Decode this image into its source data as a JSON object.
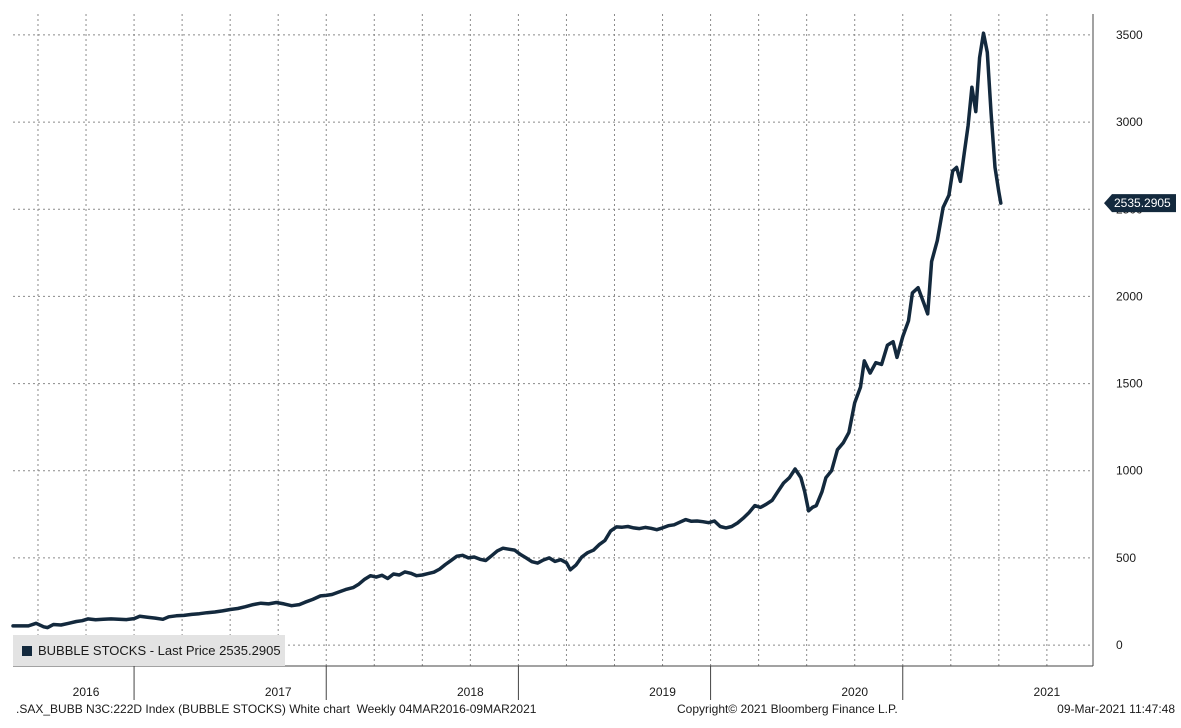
{
  "chart_data": {
    "type": "line",
    "legend": {
      "label": "BUBBLE STOCKS - Last Price 2535.2905",
      "color": "#13293d",
      "placement": "bottom-left"
    },
    "last_price_label": "2535.2905",
    "ylim": [
      -120,
      3620
    ],
    "y_ticks": [
      0,
      500,
      1000,
      1500,
      2000,
      2500,
      3000,
      3500
    ],
    "grid": true,
    "x_ticks": [
      {
        "label": "2016",
        "x": 2016.0
      },
      {
        "label": "2017",
        "x": 2017.0
      },
      {
        "label": "2018",
        "x": 2018.0
      },
      {
        "label": "2019",
        "x": 2019.0
      },
      {
        "label": "2020",
        "x": 2020.0
      },
      {
        "label": "2021",
        "x": 2021.0
      }
    ],
    "xlim": [
      2015.62,
      2021.24
    ],
    "series": [
      {
        "color": "#13293d",
        "points": [
          [
            2015.62,
            110
          ],
          [
            2015.7,
            110
          ],
          [
            2015.74,
            125
          ],
          [
            2015.78,
            105
          ],
          [
            2015.8,
            100
          ],
          [
            2015.83,
            118
          ],
          [
            2015.87,
            115
          ],
          [
            2015.91,
            125
          ],
          [
            2015.95,
            135
          ],
          [
            2015.98,
            140
          ],
          [
            2016.01,
            150
          ],
          [
            2016.05,
            145
          ],
          [
            2016.09,
            148
          ],
          [
            2016.13,
            150
          ],
          [
            2016.17,
            148
          ],
          [
            2016.21,
            146
          ],
          [
            2016.25,
            152
          ],
          [
            2016.28,
            165
          ],
          [
            2016.32,
            160
          ],
          [
            2016.36,
            155
          ],
          [
            2016.4,
            148
          ],
          [
            2016.43,
            162
          ],
          [
            2016.47,
            168
          ],
          [
            2016.51,
            170
          ],
          [
            2016.55,
            176
          ],
          [
            2016.59,
            180
          ],
          [
            2016.63,
            186
          ],
          [
            2016.67,
            190
          ],
          [
            2016.71,
            196
          ],
          [
            2016.75,
            204
          ],
          [
            2016.79,
            210
          ],
          [
            2016.83,
            220
          ],
          [
            2016.87,
            232
          ],
          [
            2016.91,
            240
          ],
          [
            2016.95,
            236
          ],
          [
            2016.99,
            244
          ],
          [
            2017.03,
            236
          ],
          [
            2017.07,
            226
          ],
          [
            2017.11,
            232
          ],
          [
            2017.14,
            246
          ],
          [
            2017.18,
            262
          ],
          [
            2017.22,
            282
          ],
          [
            2017.25,
            285
          ],
          [
            2017.28,
            290
          ],
          [
            2017.31,
            302
          ],
          [
            2017.35,
            318
          ],
          [
            2017.39,
            330
          ],
          [
            2017.42,
            350
          ],
          [
            2017.45,
            378
          ],
          [
            2017.48,
            398
          ],
          [
            2017.51,
            390
          ],
          [
            2017.54,
            400
          ],
          [
            2017.57,
            382
          ],
          [
            2017.6,
            408
          ],
          [
            2017.63,
            402
          ],
          [
            2017.66,
            420
          ],
          [
            2017.69,
            412
          ],
          [
            2017.72,
            398
          ],
          [
            2017.75,
            402
          ],
          [
            2017.78,
            410
          ],
          [
            2017.81,
            418
          ],
          [
            2017.84,
            436
          ],
          [
            2017.87,
            462
          ],
          [
            2017.9,
            486
          ],
          [
            2017.93,
            510
          ],
          [
            2017.96,
            515
          ],
          [
            2017.99,
            500
          ],
          [
            2018.02,
            505
          ],
          [
            2018.05,
            492
          ],
          [
            2018.08,
            485
          ],
          [
            2018.11,
            512
          ],
          [
            2018.14,
            540
          ],
          [
            2018.17,
            556
          ],
          [
            2018.2,
            550
          ],
          [
            2018.23,
            545
          ],
          [
            2018.26,
            520
          ],
          [
            2018.29,
            500
          ],
          [
            2018.32,
            478
          ],
          [
            2018.35,
            470
          ],
          [
            2018.38,
            488
          ],
          [
            2018.41,
            500
          ],
          [
            2018.44,
            480
          ],
          [
            2018.47,
            490
          ],
          [
            2018.5,
            472
          ],
          [
            2018.52,
            432
          ],
          [
            2018.55,
            460
          ],
          [
            2018.58,
            505
          ],
          [
            2018.61,
            530
          ],
          [
            2018.64,
            544
          ],
          [
            2018.67,
            576
          ],
          [
            2018.7,
            600
          ],
          [
            2018.73,
            655
          ],
          [
            2018.76,
            678
          ],
          [
            2018.79,
            676
          ],
          [
            2018.82,
            680
          ],
          [
            2018.85,
            672
          ],
          [
            2018.88,
            668
          ],
          [
            2018.91,
            675
          ],
          [
            2018.94,
            670
          ],
          [
            2018.97,
            662
          ],
          [
            2019.0,
            672
          ],
          [
            2019.03,
            685
          ],
          [
            2019.06,
            690
          ],
          [
            2019.09,
            705
          ],
          [
            2019.12,
            720
          ],
          [
            2019.15,
            710
          ],
          [
            2019.18,
            712
          ],
          [
            2019.21,
            708
          ],
          [
            2019.24,
            702
          ],
          [
            2019.27,
            712
          ],
          [
            2019.3,
            680
          ],
          [
            2019.33,
            672
          ],
          [
            2019.36,
            680
          ],
          [
            2019.39,
            700
          ],
          [
            2019.42,
            728
          ],
          [
            2019.45,
            760
          ],
          [
            2019.48,
            800
          ],
          [
            2019.51,
            790
          ],
          [
            2019.54,
            808
          ],
          [
            2019.57,
            830
          ],
          [
            2019.6,
            880
          ],
          [
            2019.63,
            930
          ],
          [
            2019.66,
            960
          ],
          [
            2019.69,
            1010
          ],
          [
            2019.72,
            960
          ],
          [
            2019.74,
            880
          ],
          [
            2019.76,
            770
          ],
          [
            2019.78,
            790
          ],
          [
            2019.8,
            800
          ],
          [
            2019.83,
            880
          ],
          [
            2019.85,
            960
          ],
          [
            2019.88,
            1000
          ],
          [
            2019.91,
            1120
          ],
          [
            2019.94,
            1160
          ],
          [
            2019.97,
            1220
          ],
          [
            2020.0,
            1390
          ],
          [
            2020.03,
            1480
          ],
          [
            2020.05,
            1630
          ],
          [
            2020.08,
            1560
          ],
          [
            2020.11,
            1620
          ],
          [
            2020.14,
            1610
          ],
          [
            2020.17,
            1720
          ],
          [
            2020.2,
            1740
          ],
          [
            2020.22,
            1650
          ],
          [
            2020.25,
            1770
          ],
          [
            2020.28,
            1860
          ],
          [
            2020.3,
            2020
          ],
          [
            2020.33,
            2050
          ],
          [
            2020.36,
            1960
          ],
          [
            2020.38,
            1900
          ],
          [
            2020.4,
            2200
          ],
          [
            2020.43,
            2320
          ],
          [
            2020.46,
            2510
          ],
          [
            2020.49,
            2580
          ],
          [
            2020.51,
            2720
          ],
          [
            2020.53,
            2740
          ],
          [
            2020.55,
            2660
          ],
          [
            2020.57,
            2820
          ],
          [
            2020.59,
            2980
          ],
          [
            2020.61,
            3200
          ],
          [
            2020.63,
            3060
          ],
          [
            2020.65,
            3370
          ],
          [
            2020.67,
            3510
          ],
          [
            2020.69,
            3400
          ],
          [
            2020.71,
            3050
          ],
          [
            2020.73,
            2740
          ],
          [
            2020.75,
            2600
          ],
          [
            2020.76,
            2535.29
          ]
        ]
      }
    ]
  },
  "footer": {
    "left": ".SAX_BUBB N3C:222D Index (BUBBLE STOCKS) White chart  Weekly 04MAR2016-09MAR2021",
    "middle": "Copyright© 2021 Bloomberg Finance L.P.",
    "right": "09-Mar-2021 11:47:48"
  }
}
